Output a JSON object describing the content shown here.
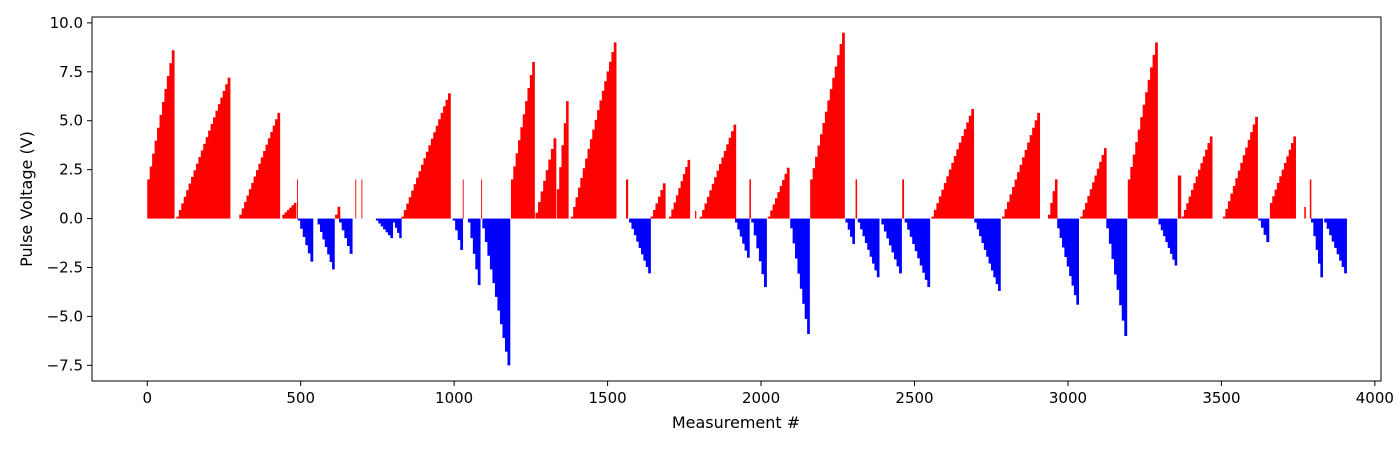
{
  "chart_data": {
    "type": "bar",
    "title": "",
    "xlabel": "Measurement #",
    "ylabel": "Pulse Voltage (V)",
    "xlim": [
      -180,
      4020
    ],
    "ylim": [
      -8.3,
      10.3
    ],
    "xticks": [
      0,
      500,
      1000,
      1500,
      2000,
      2500,
      3000,
      3500,
      4000
    ],
    "yticks": [
      -7.5,
      -5.0,
      -2.5,
      0.0,
      2.5,
      5.0,
      7.5,
      10.0
    ],
    "grid": false,
    "colors": {
      "positive": "#ff0000",
      "negative": "#0000ff"
    },
    "series": [
      {
        "color": "#ff0000",
        "segments": [
          {
            "x0": 0,
            "x1": 88,
            "y0": 2.0,
            "y1": 8.6
          },
          {
            "x0": 95,
            "x1": 270,
            "y0": 0.1,
            "y1": 7.2
          },
          {
            "x0": 300,
            "x1": 432,
            "y0": 0.2,
            "y1": 5.4
          },
          {
            "x0": 440,
            "x1": 485,
            "y0": 0.2,
            "y1": 0.8
          },
          {
            "x0": 488,
            "x1": 490,
            "y0": 2.0,
            "y1": 2.0
          },
          {
            "x0": 612,
            "x1": 628,
            "y0": 0.2,
            "y1": 0.6
          },
          {
            "x0": 678,
            "x1": 680,
            "y0": 2.0,
            "y1": 2.0
          },
          {
            "x0": 698,
            "x1": 700,
            "y0": 2.0,
            "y1": 2.0
          },
          {
            "x0": 828,
            "x1": 988,
            "y0": 0.1,
            "y1": 6.4
          },
          {
            "x0": 1028,
            "x1": 1030,
            "y0": 2.0,
            "y1": 2.0
          },
          {
            "x0": 1088,
            "x1": 1090,
            "y0": 2.0,
            "y1": 2.0
          },
          {
            "x0": 1185,
            "x1": 1262,
            "y0": 2.0,
            "y1": 8.0
          },
          {
            "x0": 1265,
            "x1": 1332,
            "y0": 0.3,
            "y1": 4.1
          },
          {
            "x0": 1335,
            "x1": 1372,
            "y0": 1.5,
            "y1": 6.0
          },
          {
            "x0": 1380,
            "x1": 1528,
            "y0": 0.1,
            "y1": 9.0
          },
          {
            "x0": 1560,
            "x1": 1566,
            "y0": 2.0,
            "y1": 2.0
          },
          {
            "x0": 1640,
            "x1": 1688,
            "y0": 0.1,
            "y1": 1.8
          },
          {
            "x0": 1700,
            "x1": 1768,
            "y0": 0.1,
            "y1": 3.0
          },
          {
            "x0": 1785,
            "x1": 1788,
            "y0": 0.4,
            "y1": 0.4
          },
          {
            "x0": 1800,
            "x1": 1918,
            "y0": 0.1,
            "y1": 4.8
          },
          {
            "x0": 1962,
            "x1": 1966,
            "y0": 2.0,
            "y1": 2.0
          },
          {
            "x0": 2022,
            "x1": 2092,
            "y0": 0.1,
            "y1": 2.6
          },
          {
            "x0": 2160,
            "x1": 2272,
            "y0": 2.0,
            "y1": 9.5
          },
          {
            "x0": 2308,
            "x1": 2312,
            "y0": 2.0,
            "y1": 2.0
          },
          {
            "x0": 2460,
            "x1": 2465,
            "y0": 2.0,
            "y1": 2.0
          },
          {
            "x0": 2555,
            "x1": 2693,
            "y0": 0.1,
            "y1": 5.6
          },
          {
            "x0": 2785,
            "x1": 2908,
            "y0": 0.1,
            "y1": 5.4
          },
          {
            "x0": 2935,
            "x1": 2965,
            "y0": 0.2,
            "y1": 2.0
          },
          {
            "x0": 3040,
            "x1": 3125,
            "y0": 0.1,
            "y1": 3.6
          },
          {
            "x0": 3195,
            "x1": 3292,
            "y0": 2.0,
            "y1": 9.0
          },
          {
            "x0": 3358,
            "x1": 3368,
            "y0": 2.0,
            "y1": 2.2
          },
          {
            "x0": 3370,
            "x1": 3470,
            "y0": 0.1,
            "y1": 4.2
          },
          {
            "x0": 3505,
            "x1": 3618,
            "y0": 0.1,
            "y1": 5.2
          },
          {
            "x0": 3658,
            "x1": 3742,
            "y0": 0.8,
            "y1": 4.2
          },
          {
            "x0": 3770,
            "x1": 3774,
            "y0": 0.6,
            "y1": 0.6
          },
          {
            "x0": 3788,
            "x1": 3792,
            "y0": 2.0,
            "y1": 2.0
          }
        ]
      },
      {
        "color": "#0000ff",
        "segments": [
          {
            "x0": 490,
            "x1": 540,
            "y0": -0.1,
            "y1": -2.2
          },
          {
            "x0": 555,
            "x1": 610,
            "y0": -0.3,
            "y1": -2.6
          },
          {
            "x0": 625,
            "x1": 668,
            "y0": -0.2,
            "y1": -1.8
          },
          {
            "x0": 745,
            "x1": 800,
            "y0": -0.1,
            "y1": -1.0
          },
          {
            "x0": 800,
            "x1": 828,
            "y0": -0.2,
            "y1": -1.0
          },
          {
            "x0": 995,
            "x1": 1028,
            "y0": -0.1,
            "y1": -1.6
          },
          {
            "x0": 1045,
            "x1": 1085,
            "y0": -0.2,
            "y1": -3.4
          },
          {
            "x0": 1092,
            "x1": 1182,
            "y0": -0.5,
            "y1": -7.5
          },
          {
            "x0": 1570,
            "x1": 1640,
            "y0": -0.2,
            "y1": -2.8
          },
          {
            "x0": 1915,
            "x1": 1962,
            "y0": -0.2,
            "y1": -2.0
          },
          {
            "x0": 1968,
            "x1": 2018,
            "y0": -0.2,
            "y1": -3.5
          },
          {
            "x0": 2095,
            "x1": 2158,
            "y0": -0.5,
            "y1": -5.9
          },
          {
            "x0": 2275,
            "x1": 2305,
            "y0": -0.2,
            "y1": -1.3
          },
          {
            "x0": 2315,
            "x1": 2385,
            "y0": -0.2,
            "y1": -3.0
          },
          {
            "x0": 2392,
            "x1": 2458,
            "y0": -0.3,
            "y1": -2.8
          },
          {
            "x0": 2468,
            "x1": 2550,
            "y0": -0.2,
            "y1": -3.5
          },
          {
            "x0": 2695,
            "x1": 2780,
            "y0": -0.2,
            "y1": -3.7
          },
          {
            "x0": 2965,
            "x1": 3035,
            "y0": -0.5,
            "y1": -4.4
          },
          {
            "x0": 3125,
            "x1": 3192,
            "y0": -0.5,
            "y1": -6.0
          },
          {
            "x0": 3295,
            "x1": 3355,
            "y0": -0.3,
            "y1": -2.4
          },
          {
            "x0": 3620,
            "x1": 3655,
            "y0": -0.1,
            "y1": -1.2
          },
          {
            "x0": 3792,
            "x1": 3830,
            "y0": -0.2,
            "y1": -3.0
          },
          {
            "x0": 3835,
            "x1": 3908,
            "y0": -0.2,
            "y1": -2.8
          }
        ]
      }
    ]
  }
}
